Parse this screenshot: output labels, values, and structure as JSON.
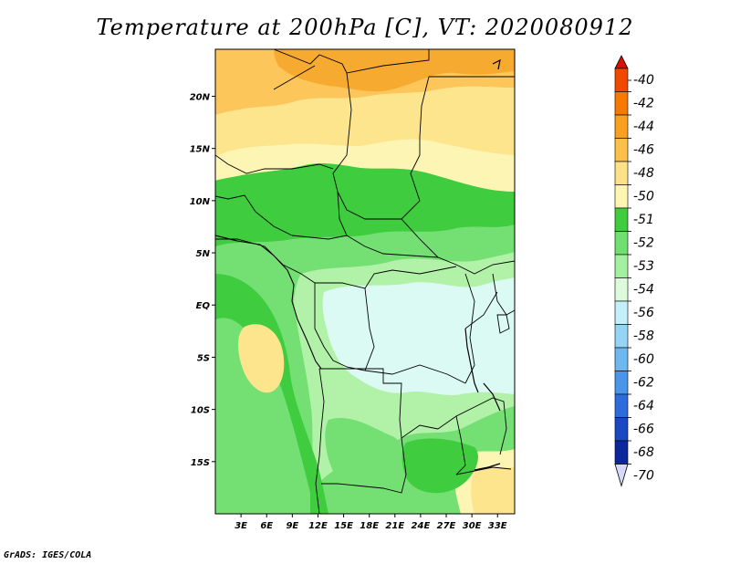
{
  "title": "Temperature at 200hPa [C], VT: 2020080912",
  "credit": "GrADS: IGES/COLA",
  "map": {
    "lat_labels": [
      {
        "value": 20,
        "label": "20N"
      },
      {
        "value": 15,
        "label": "15N"
      },
      {
        "value": 10,
        "label": "10N"
      },
      {
        "value": 5,
        "label": "5N"
      },
      {
        "value": 0,
        "label": "EQ"
      },
      {
        "value": -5,
        "label": "5S"
      },
      {
        "value": -10,
        "label": "10S"
      },
      {
        "value": -15,
        "label": "15S"
      }
    ],
    "lon_labels": [
      {
        "value": 3,
        "label": "3E"
      },
      {
        "value": 6,
        "label": "6E"
      },
      {
        "value": 9,
        "label": "9E"
      },
      {
        "value": 12,
        "label": "12E"
      },
      {
        "value": 15,
        "label": "15E"
      },
      {
        "value": 18,
        "label": "18E"
      },
      {
        "value": 21,
        "label": "21E"
      },
      {
        "value": 24,
        "label": "24E"
      },
      {
        "value": 27,
        "label": "27E"
      },
      {
        "value": 30,
        "label": "30E"
      },
      {
        "value": 33,
        "label": "33E"
      }
    ],
    "lon_range": [
      0,
      35
    ],
    "lat_range": [
      -20,
      24.5
    ]
  },
  "colorbar": {
    "labels": [
      "-40",
      "-42",
      "-44",
      "-46",
      "-48",
      "-50",
      "-51",
      "-52",
      "-53",
      "-54",
      "-56",
      "-58",
      "-60",
      "-62",
      "-64",
      "-66",
      "-68",
      "-70"
    ],
    "colors": [
      "#e01e00",
      "#f04a00",
      "#f77a00",
      "#f9a020",
      "#fbc04a",
      "#fde188",
      "#fdf5b0",
      "#3fcc3f",
      "#6fe06f",
      "#a5f0a0",
      "#dcfadc",
      "#c4eefa",
      "#96d4f6",
      "#6eb8f2",
      "#4a94ea",
      "#2e6cde",
      "#1a48c2",
      "#0c269e",
      "#080c6c"
    ],
    "top_triangle_color": "#d81000",
    "bottom_triangle_color": "#d8d8f8"
  },
  "field_colors": {
    "c46": "#f7aa30",
    "c48": "#fcc65a",
    "c50": "#fde58e",
    "c51": "#fdf5b4",
    "c52": "#3fcc3f",
    "c53": "#74e074",
    "c54": "#b2f2a8",
    "c56": "#dcfaf4"
  }
}
